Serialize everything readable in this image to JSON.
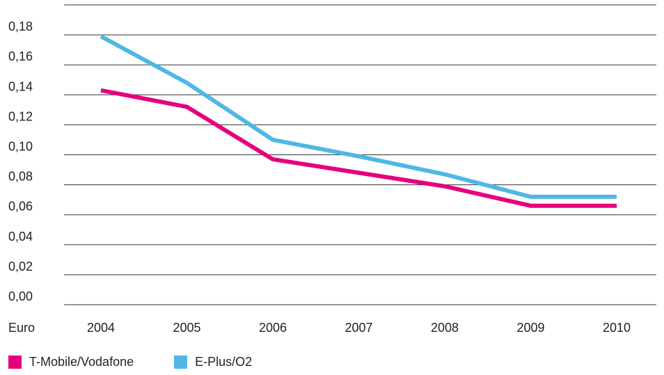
{
  "chart_data": {
    "type": "line",
    "title": "",
    "xlabel": "",
    "ylabel": "Euro",
    "categories": [
      "2004",
      "2005",
      "2006",
      "2007",
      "2008",
      "2009",
      "2010"
    ],
    "ylim": [
      0,
      0.2
    ],
    "yticks": [
      "0,00",
      "0,02",
      "0,04",
      "0,06",
      "0,08",
      "0,10",
      "0,12",
      "0,14",
      "0,16",
      "0,18"
    ],
    "grid": true,
    "legend_position": "bottom-left",
    "series": [
      {
        "name": "T-Mobile/Vodafone",
        "color": "#e5007e",
        "values": [
          0.143,
          0.132,
          0.097,
          0.088,
          0.079,
          0.066,
          0.066
        ]
      },
      {
        "name": "E-Plus/O2",
        "color": "#4fb7e6",
        "values": [
          0.179,
          0.148,
          0.11,
          0.099,
          0.087,
          0.072,
          0.072
        ]
      }
    ]
  }
}
